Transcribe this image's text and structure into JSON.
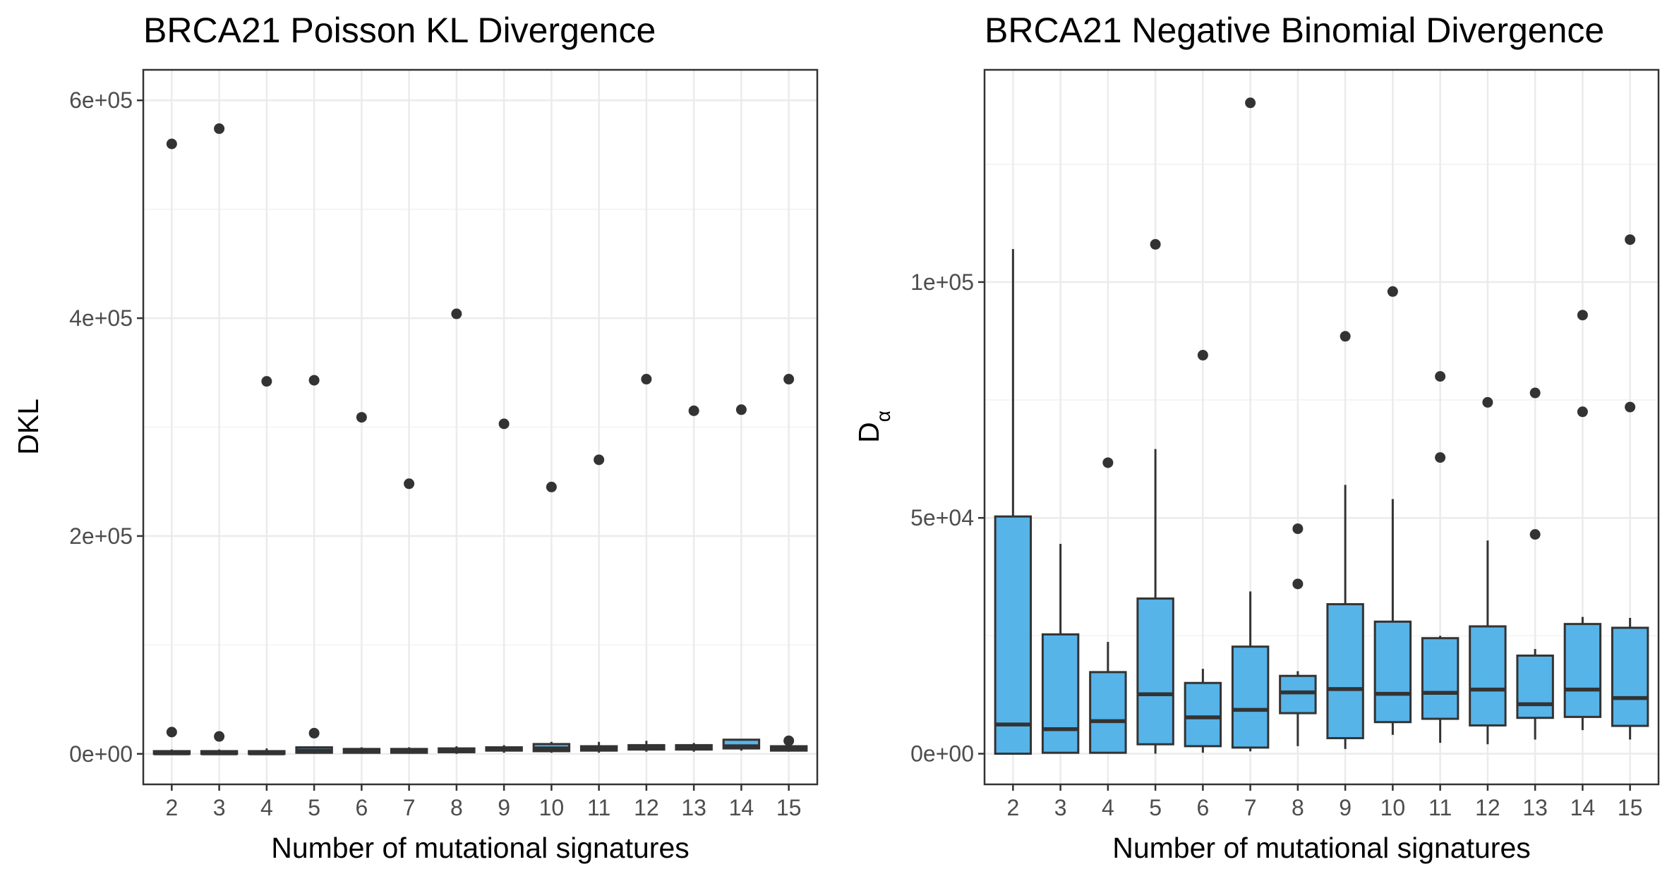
{
  "chart_data": [
    {
      "type": "boxplot",
      "title": "BRCA21 Poisson KL Divergence",
      "xlabel": "Number of mutational signatures",
      "ylabel": "DKL",
      "ylabel_subscript": "",
      "categories": [
        "2",
        "3",
        "4",
        "5",
        "6",
        "7",
        "8",
        "9",
        "10",
        "11",
        "12",
        "13",
        "14",
        "15"
      ],
      "ylim": [
        -28000,
        628000
      ],
      "yticks": [
        0,
        200000,
        400000,
        600000
      ],
      "ytick_labels": [
        "0e+00",
        "2e+05",
        "4e+05",
        "6e+05"
      ],
      "grid": true,
      "fill_color": "#56b4e9",
      "boxes": [
        {
          "whisker_low": 0,
          "q1": 0,
          "median": 500,
          "q3": 2500,
          "whisker_high": 4000,
          "outliers": [
            560000,
            20000
          ]
        },
        {
          "whisker_low": 0,
          "q1": 0,
          "median": 500,
          "q3": 2500,
          "whisker_high": 4000,
          "outliers": [
            574000,
            16000
          ]
        },
        {
          "whisker_low": 0,
          "q1": 0,
          "median": 500,
          "q3": 2500,
          "whisker_high": 5000,
          "outliers": [
            342000
          ]
        },
        {
          "whisker_low": 0,
          "q1": 1000,
          "median": 3000,
          "q3": 6000,
          "whisker_high": 7000,
          "outliers": [
            343000,
            19000
          ]
        },
        {
          "whisker_low": 0,
          "q1": 1000,
          "median": 2500,
          "q3": 4500,
          "whisker_high": 6000,
          "outliers": [
            309000
          ]
        },
        {
          "whisker_low": 0,
          "q1": 1000,
          "median": 2500,
          "q3": 4500,
          "whisker_high": 6000,
          "outliers": [
            248000
          ]
        },
        {
          "whisker_low": 0,
          "q1": 1500,
          "median": 3000,
          "q3": 5000,
          "whisker_high": 7000,
          "outliers": [
            404000
          ]
        },
        {
          "whisker_low": 1000,
          "q1": 3000,
          "median": 5000,
          "q3": 6000,
          "whisker_high": 8000,
          "outliers": [
            303000
          ]
        },
        {
          "whisker_low": 1000,
          "q1": 2500,
          "median": 5000,
          "q3": 9000,
          "whisker_high": 11000,
          "outliers": [
            245000
          ]
        },
        {
          "whisker_low": 1000,
          "q1": 3000,
          "median": 5000,
          "q3": 7000,
          "whisker_high": 11000,
          "outliers": [
            270000
          ]
        },
        {
          "whisker_low": 2000,
          "q1": 4000,
          "median": 6000,
          "q3": 8000,
          "whisker_high": 12000,
          "outliers": [
            344000
          ]
        },
        {
          "whisker_low": 2000,
          "q1": 4000,
          "median": 6000,
          "q3": 8000,
          "whisker_high": 10000,
          "outliers": [
            315000
          ]
        },
        {
          "whisker_low": 3000,
          "q1": 5000,
          "median": 7000,
          "q3": 13000,
          "whisker_high": 13000,
          "outliers": [
            316000
          ]
        },
        {
          "whisker_low": 2000,
          "q1": 3000,
          "median": 5000,
          "q3": 7000,
          "whisker_high": 8000,
          "outliers": [
            344000,
            12000
          ]
        }
      ]
    },
    {
      "type": "boxplot",
      "title": "BRCA21 Negative Binomial Divergence",
      "xlabel": "Number of mutational signatures",
      "ylabel": "D",
      "ylabel_subscript": "α",
      "categories": [
        "2",
        "3",
        "4",
        "5",
        "6",
        "7",
        "8",
        "9",
        "10",
        "11",
        "12",
        "13",
        "14",
        "15"
      ],
      "ylim": [
        -6500,
        145000
      ],
      "yticks": [
        0,
        50000,
        100000
      ],
      "ytick_labels": [
        "0e+00",
        "5e+04",
        "1e+05"
      ],
      "grid": true,
      "fill_color": "#56b4e9",
      "boxes": [
        {
          "whisker_low": 0,
          "q1": 0,
          "median": 6200,
          "q3": 50300,
          "whisker_high": 107000,
          "outliers": []
        },
        {
          "whisker_low": 0,
          "q1": 200,
          "median": 5200,
          "q3": 25300,
          "whisker_high": 44500,
          "outliers": []
        },
        {
          "whisker_low": 0,
          "q1": 200,
          "median": 6900,
          "q3": 17300,
          "whisker_high": 23700,
          "outliers": [
            61700
          ]
        },
        {
          "whisker_low": 0,
          "q1": 2000,
          "median": 12600,
          "q3": 32900,
          "whisker_high": 64600,
          "outliers": [
            108000
          ]
        },
        {
          "whisker_low": 200,
          "q1": 1600,
          "median": 7700,
          "q3": 15000,
          "whisker_high": 18000,
          "outliers": [
            84500
          ]
        },
        {
          "whisker_low": 500,
          "q1": 1300,
          "median": 9300,
          "q3": 22700,
          "whisker_high": 34400,
          "outliers": [
            138000
          ]
        },
        {
          "whisker_low": 1600,
          "q1": 8600,
          "median": 13000,
          "q3": 16500,
          "whisker_high": 17500,
          "outliers": [
            47700,
            36000
          ]
        },
        {
          "whisker_low": 1000,
          "q1": 3300,
          "median": 13700,
          "q3": 31700,
          "whisker_high": 57000,
          "outliers": [
            88500
          ]
        },
        {
          "whisker_low": 4000,
          "q1": 6700,
          "median": 12700,
          "q3": 28000,
          "whisker_high": 54000,
          "outliers": [
            98000
          ]
        },
        {
          "whisker_low": 2300,
          "q1": 7400,
          "median": 12900,
          "q3": 24500,
          "whisker_high": 25000,
          "outliers": [
            80000,
            62800
          ]
        },
        {
          "whisker_low": 2000,
          "q1": 6000,
          "median": 13600,
          "q3": 27000,
          "whisker_high": 45200,
          "outliers": [
            74500
          ]
        },
        {
          "whisker_low": 3000,
          "q1": 7600,
          "median": 10500,
          "q3": 20800,
          "whisker_high": 22200,
          "outliers": [
            76500,
            46500
          ]
        },
        {
          "whisker_low": 5000,
          "q1": 7800,
          "median": 13600,
          "q3": 27500,
          "whisker_high": 29000,
          "outliers": [
            93000,
            72500
          ]
        },
        {
          "whisker_low": 3000,
          "q1": 5900,
          "median": 11800,
          "q3": 26700,
          "whisker_high": 28800,
          "outliers": [
            109000,
            73500
          ]
        }
      ]
    }
  ]
}
